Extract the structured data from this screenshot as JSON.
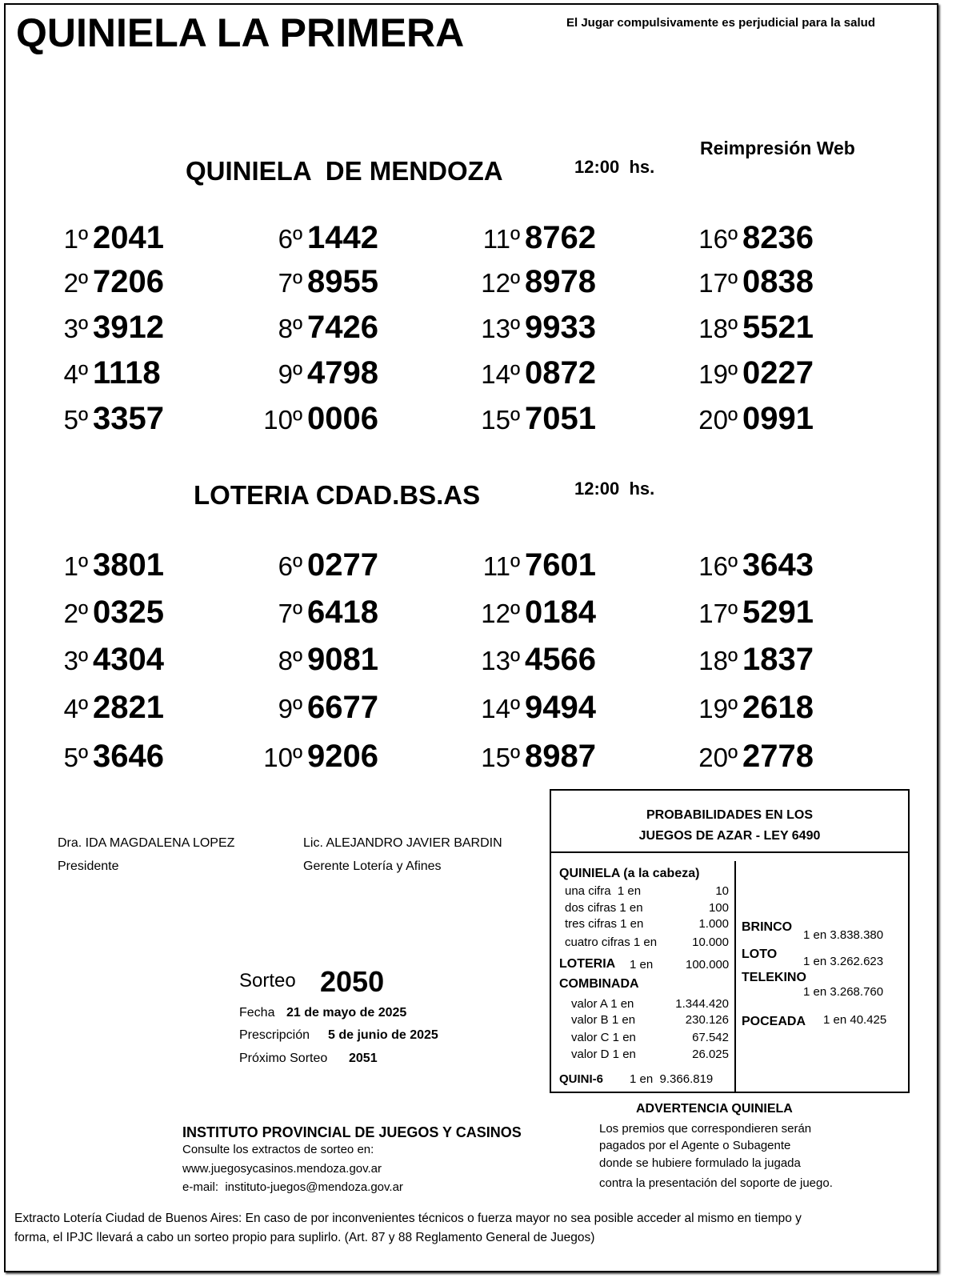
{
  "header": {
    "title": "QUINIELA LA PRIMERA",
    "warning": "El Jugar compulsivamente es perjudicial para la salud",
    "reprint": "Reimpresión Web"
  },
  "draws": [
    {
      "name": "QUINIELA  DE MENDOZA",
      "time": "12:00  hs.",
      "results": [
        {
          "pos": "1º",
          "num": "2041"
        },
        {
          "pos": "2º",
          "num": "7206"
        },
        {
          "pos": "3º",
          "num": "3912"
        },
        {
          "pos": "4º",
          "num": "1118"
        },
        {
          "pos": "5º",
          "num": "3357"
        },
        {
          "pos": "6º",
          "num": "1442"
        },
        {
          "pos": "7º",
          "num": "8955"
        },
        {
          "pos": "8º",
          "num": "7426"
        },
        {
          "pos": "9º",
          "num": "4798"
        },
        {
          "pos": "10º",
          "num": "0006"
        },
        {
          "pos": "11º",
          "num": "8762"
        },
        {
          "pos": "12º",
          "num": "8978"
        },
        {
          "pos": "13º",
          "num": "9933"
        },
        {
          "pos": "14º",
          "num": "0872"
        },
        {
          "pos": "15º",
          "num": "7051"
        },
        {
          "pos": "16º",
          "num": "8236"
        },
        {
          "pos": "17º",
          "num": "0838"
        },
        {
          "pos": "18º",
          "num": "5521"
        },
        {
          "pos": "19º",
          "num": "0227"
        },
        {
          "pos": "20º",
          "num": "0991"
        }
      ]
    },
    {
      "name": "LOTERIA CDAD.BS.AS",
      "time": "12:00  hs.",
      "results": [
        {
          "pos": "1º",
          "num": "3801"
        },
        {
          "pos": "2º",
          "num": "0325"
        },
        {
          "pos": "3º",
          "num": "4304"
        },
        {
          "pos": "4º",
          "num": "2821"
        },
        {
          "pos": "5º",
          "num": "3646"
        },
        {
          "pos": "6º",
          "num": "0277"
        },
        {
          "pos": "7º",
          "num": "6418"
        },
        {
          "pos": "8º",
          "num": "9081"
        },
        {
          "pos": "9º",
          "num": "6677"
        },
        {
          "pos": "10º",
          "num": "9206"
        },
        {
          "pos": "11º",
          "num": "7601"
        },
        {
          "pos": "12º",
          "num": "0184"
        },
        {
          "pos": "13º",
          "num": "4566"
        },
        {
          "pos": "14º",
          "num": "9494"
        },
        {
          "pos": "15º",
          "num": "8987"
        },
        {
          "pos": "16º",
          "num": "3643"
        },
        {
          "pos": "17º",
          "num": "5291"
        },
        {
          "pos": "18º",
          "num": "1837"
        },
        {
          "pos": "19º",
          "num": "2618"
        },
        {
          "pos": "20º",
          "num": "2778"
        }
      ]
    }
  ],
  "signatures": [
    {
      "name": "Dra. IDA MAGDALENA LOPEZ",
      "role": "Presidente"
    },
    {
      "name": "Lic. ALEJANDRO JAVIER BARDIN",
      "role": "Gerente Lotería y Afines"
    }
  ],
  "sorteo": {
    "label": "Sorteo",
    "number": "2050",
    "fecha_label": "Fecha",
    "fecha": "21 de mayo de 2025",
    "prescripcion_label": "Prescripción",
    "prescripcion": "5 de junio de 2025",
    "proximo_label": "Próximo Sorteo",
    "proximo": "2051"
  },
  "probabilities": {
    "title1": "PROBABILIDADES EN LOS",
    "title2": "JUEGOS DE AZAR - LEY 6490",
    "quiniela_label": "QUINIELA (a la cabeza)",
    "quiniela": [
      {
        "label": "una cifra  1 en",
        "value": "10"
      },
      {
        "label": "dos cifras 1 en",
        "value": "100"
      },
      {
        "label": "tres cifras 1 en",
        "value": "1.000"
      },
      {
        "label": "cuatro cifras 1 en",
        "value": "10.000"
      }
    ],
    "loteria_label": "LOTERIA",
    "loteria_en": "1 en",
    "loteria_value": "100.000",
    "combinada_label": "COMBINADA",
    "combinada": [
      {
        "label": "valor A 1 en",
        "value": "1.344.420"
      },
      {
        "label": "valor B 1 en",
        "value": "230.126"
      },
      {
        "label": "valor C 1 en",
        "value": "67.542"
      },
      {
        "label": "valor D 1 en",
        "value": "26.025"
      }
    ],
    "quini6_label": "QUINI-6",
    "quini6_value": "1 en  9.366.819",
    "brinco_label": "BRINCO",
    "brinco_value": "1 en 3.838.380",
    "loto_label": "LOTO",
    "loto_value": "1 en 3.262.623",
    "telekino_label": "TELEKINO",
    "telekino_value": "1 en 3.268.760",
    "poceada_label": "POCEADA",
    "poceada_value": "1 en 40.425"
  },
  "institute": {
    "name": "INSTITUTO PROVINCIAL DE JUEGOS Y CASINOS",
    "consult": "Consulte los extractos de sorteo en:",
    "web": "www.juegosycasinos.mendoza.gov.ar",
    "email": "e-mail:  instituto-juegos@mendoza.gov.ar"
  },
  "advertencia": {
    "title": "ADVERTENCIA QUINIELA",
    "lines": [
      "Los premios que correspondieren serán",
      "pagados por el Agente o Subagente",
      "donde se hubiere formulado la jugada",
      "contra la presentación del soporte de juego."
    ]
  },
  "footer": {
    "line1": "Extracto Lotería Ciudad de Buenos Aires: En caso de por inconvenientes técnicos o fuerza mayor no sea posible acceder al mismo en tiempo y",
    "line2": "forma, el IPJC llevará a cabo un sorteo propio para suplirlo. (Art. 87 y 88 Reglamento General de Juegos)"
  }
}
